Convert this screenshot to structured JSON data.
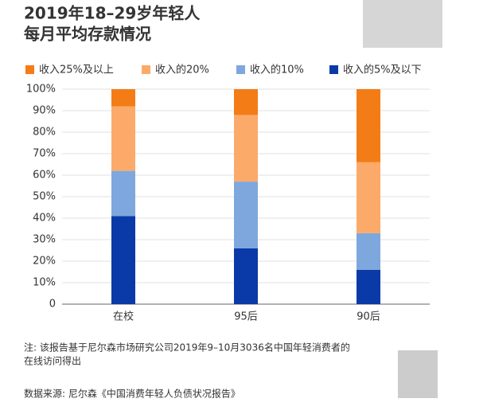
{
  "chart_data": {
    "type": "stacked_bar",
    "title": [
      "2019年18–29岁年轻人",
      "每月平均存款情况"
    ],
    "categories": [
      "在校",
      "95后",
      "90后"
    ],
    "series": [
      {
        "name": "收入25%及以上",
        "color": "#f47c16",
        "values": [
          8,
          12,
          34
        ]
      },
      {
        "name": "收入的20%",
        "color": "#fbaa6a",
        "values": [
          30,
          31,
          33
        ]
      },
      {
        "name": "收入的10%",
        "color": "#7ea7dd",
        "values": [
          21,
          31,
          17
        ]
      },
      {
        "name": "收入的5%及以下",
        "color": "#0a3aa8",
        "values": [
          41,
          26,
          16
        ]
      }
    ],
    "ylim": [
      0,
      100
    ],
    "yticks": [
      0,
      {
        "value": 10,
        "label": "10%"
      },
      {
        "value": 20,
        "label": "20%"
      },
      {
        "value": 30,
        "label": "30%"
      },
      {
        "value": 40,
        "label": "40%"
      },
      {
        "value": 50,
        "label": "50%"
      },
      {
        "value": 60,
        "label": "60%"
      },
      {
        "value": 70,
        "label": "70%"
      },
      {
        "value": 80,
        "label": "80%"
      },
      {
        "value": 90,
        "label": "90%"
      },
      {
        "value": 100,
        "label": "100%"
      }
    ],
    "grid": true,
    "notes": [
      "注: 该报告基于尼尔森市场研究公司2019年9–10月3036名中国年轻消费者的",
      "在线访问得出"
    ],
    "source": "数据来源: 尼尔森《中国消费年轻人负债状况报告》"
  }
}
